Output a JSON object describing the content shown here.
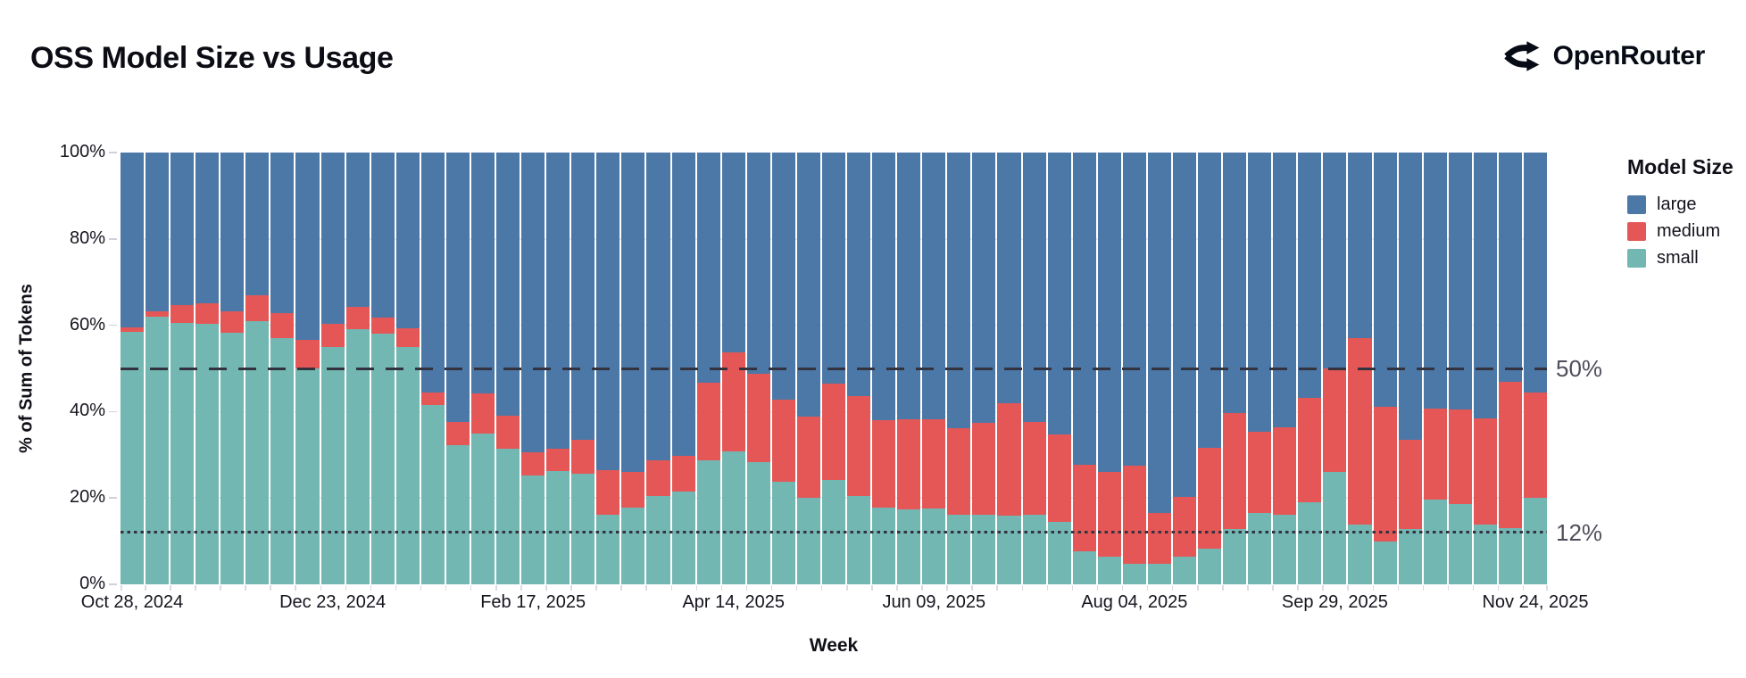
{
  "page": {
    "title": "OSS Model Size vs Usage",
    "brand": "OpenRouter"
  },
  "chart_data": {
    "type": "bar",
    "variant": "stacked-normalized-100",
    "title": "OSS Model Size vs Usage",
    "xlabel": "Week",
    "ylabel": "% of Sum of Tokens",
    "grid": true,
    "legend": {
      "title": "Model Size",
      "position": "right",
      "entries": [
        {
          "label": "large",
          "color": "#4c78a8"
        },
        {
          "label": "medium",
          "color": "#e45756"
        },
        {
          "label": "small",
          "color": "#72b7b2"
        }
      ]
    },
    "x": [
      "2024-10-28",
      "2024-11-04",
      "2024-11-11",
      "2024-11-18",
      "2024-11-25",
      "2024-12-02",
      "2024-12-09",
      "2024-12-16",
      "2024-12-23",
      "2024-12-30",
      "2025-01-06",
      "2025-01-13",
      "2025-01-20",
      "2025-01-27",
      "2025-02-03",
      "2025-02-10",
      "2025-02-17",
      "2025-02-24",
      "2025-03-03",
      "2025-03-10",
      "2025-03-17",
      "2025-03-24",
      "2025-03-31",
      "2025-04-07",
      "2025-04-14",
      "2025-04-21",
      "2025-04-28",
      "2025-05-05",
      "2025-05-12",
      "2025-05-19",
      "2025-05-26",
      "2025-06-02",
      "2025-06-09",
      "2025-06-16",
      "2025-06-23",
      "2025-06-30",
      "2025-07-07",
      "2025-07-14",
      "2025-07-21",
      "2025-07-28",
      "2025-08-04",
      "2025-08-11",
      "2025-08-18",
      "2025-08-25",
      "2025-09-01",
      "2025-09-08",
      "2025-09-15",
      "2025-09-22",
      "2025-09-29",
      "2025-10-06",
      "2025-10-13",
      "2025-10-20",
      "2025-10-27",
      "2025-11-03",
      "2025-11-10",
      "2025-11-17",
      "2025-11-24"
    ],
    "x_tick_labels": [
      "Oct 28, 2024",
      "Dec 23, 2024",
      "Feb 17, 2025",
      "Apr 14, 2025",
      "Jun 09, 2025",
      "Aug 04, 2025",
      "Sep 29, 2025",
      "Nov 24, 2025"
    ],
    "x_tick_indices": [
      0,
      8,
      16,
      24,
      32,
      40,
      48,
      56
    ],
    "y_axis": {
      "range": [
        0,
        100
      ],
      "ticks": [
        100,
        80,
        60,
        40,
        20,
        0
      ],
      "tick_format": "percent",
      "grid_values": [
        20,
        40,
        60,
        80
      ]
    },
    "reference_lines": [
      {
        "value": 50,
        "style": "dashed",
        "label": "50%"
      },
      {
        "value": 12,
        "style": "dotted",
        "label": "12%"
      }
    ],
    "stack_order_bottom_to_top": [
      "small",
      "medium",
      "large"
    ],
    "series": [
      {
        "name": "small",
        "color": "#72b7b2",
        "values": [
          58.5,
          62.0,
          60.6,
          60.4,
          58.3,
          60.9,
          57.1,
          50.0,
          54.9,
          59.0,
          58.0,
          54.9,
          41.5,
          32.2,
          34.9,
          31.5,
          25.3,
          26.2,
          25.7,
          16.2,
          17.8,
          20.5,
          21.5,
          28.8,
          30.8,
          28.4,
          23.7,
          20.0,
          24.2,
          20.4,
          17.7,
          17.3,
          17.5,
          16.2,
          16.1,
          15.9,
          16.1,
          14.5,
          7.6,
          6.5,
          4.8,
          4.8,
          6.5,
          8.3,
          12.8,
          16.6,
          16.2,
          19.0,
          26.0,
          13.8,
          10.0,
          12.8,
          19.7,
          18.6,
          13.8,
          13.1,
          20.0
        ]
      },
      {
        "name": "medium",
        "color": "#e45756",
        "values": [
          1.0,
          1.3,
          4.1,
          4.6,
          5.0,
          6.1,
          5.8,
          6.6,
          5.5,
          5.3,
          3.8,
          4.5,
          3.0,
          5.5,
          9.3,
          7.5,
          5.3,
          5.2,
          7.8,
          10.2,
          8.3,
          8.2,
          8.2,
          17.9,
          22.9,
          20.3,
          19.1,
          18.9,
          22.2,
          23.1,
          20.3,
          21.0,
          20.7,
          20.0,
          21.4,
          26.0,
          21.6,
          20.2,
          20.0,
          19.5,
          22.6,
          11.8,
          13.7,
          23.4,
          26.9,
          18.8,
          20.2,
          24.1,
          24.0,
          43.3,
          31.1,
          20.7,
          21.0,
          21.8,
          24.6,
          33.8,
          24.5
        ]
      },
      {
        "name": "large",
        "color": "#4c78a8",
        "values": [
          40.5,
          36.7,
          35.3,
          35.0,
          36.7,
          33.0,
          37.1,
          43.4,
          39.6,
          35.7,
          38.2,
          40.6,
          55.5,
          62.3,
          55.8,
          61.0,
          69.4,
          68.6,
          66.5,
          73.6,
          73.9,
          71.3,
          70.3,
          53.3,
          46.3,
          51.3,
          57.2,
          61.1,
          53.6,
          56.5,
          62.0,
          61.7,
          61.8,
          63.8,
          62.5,
          58.1,
          62.3,
          65.3,
          72.4,
          74.0,
          72.6,
          83.4,
          79.8,
          68.3,
          60.3,
          64.6,
          63.6,
          56.9,
          50.0,
          42.9,
          58.9,
          66.5,
          59.3,
          59.6,
          61.6,
          53.1,
          55.5
        ]
      }
    ]
  }
}
